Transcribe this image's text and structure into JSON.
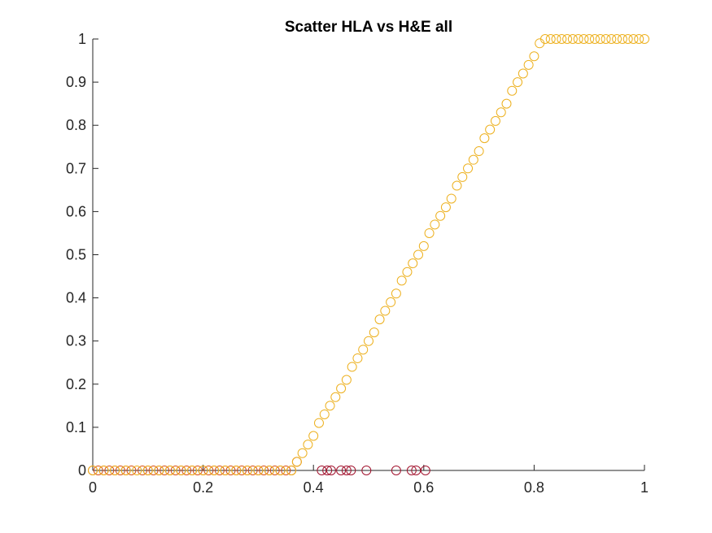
{
  "chart_data": {
    "type": "scatter",
    "title": "Scatter HLA vs H&E all",
    "xlabel": "",
    "ylabel": "",
    "xlim": [
      0,
      1
    ],
    "ylim": [
      0,
      1
    ],
    "x_ticks": [
      "0",
      "0.2",
      "0.4",
      "0.6",
      "0.8",
      "1"
    ],
    "y_ticks": [
      "0",
      "0.1",
      "0.2",
      "0.3",
      "0.4",
      "0.5",
      "0.6",
      "0.7",
      "0.8",
      "0.9",
      "1"
    ],
    "grid": false,
    "legend": "none",
    "colors": {
      "ramp": "#EDB120",
      "left_flat": "#D95319",
      "right_cluster": "#A2142F",
      "axis": "#262626"
    },
    "series": [
      {
        "color": "#D95319",
        "points": [
          [
            0.0,
            0
          ],
          [
            0.01,
            0
          ],
          [
            0.02,
            0
          ],
          [
            0.03,
            0
          ],
          [
            0.04,
            0
          ],
          [
            0.05,
            0
          ],
          [
            0.06,
            0
          ],
          [
            0.07,
            0
          ],
          [
            0.09,
            0
          ],
          [
            0.1,
            0
          ],
          [
            0.11,
            0
          ],
          [
            0.12,
            0
          ],
          [
            0.13,
            0
          ],
          [
            0.14,
            0
          ],
          [
            0.15,
            0
          ],
          [
            0.16,
            0
          ],
          [
            0.17,
            0
          ],
          [
            0.18,
            0
          ],
          [
            0.19,
            0
          ],
          [
            0.2,
            0
          ],
          [
            0.21,
            0
          ],
          [
            0.22,
            0
          ],
          [
            0.23,
            0
          ],
          [
            0.24,
            0
          ],
          [
            0.25,
            0
          ],
          [
            0.26,
            0
          ],
          [
            0.27,
            0
          ],
          [
            0.28,
            0
          ],
          [
            0.29,
            0
          ],
          [
            0.3,
            0
          ],
          [
            0.31,
            0
          ],
          [
            0.32,
            0
          ],
          [
            0.33,
            0
          ],
          [
            0.34,
            0
          ],
          [
            0.35,
            0
          ],
          [
            0.36,
            0
          ],
          [
            0.37,
            0.02
          ]
        ]
      },
      {
        "color": "#A2142F",
        "points": [
          [
            0.415,
            0
          ],
          [
            0.425,
            0
          ],
          [
            0.432,
            0
          ],
          [
            0.45,
            0
          ],
          [
            0.46,
            0
          ],
          [
            0.468,
            0
          ],
          [
            0.496,
            0
          ],
          [
            0.55,
            0
          ],
          [
            0.578,
            0
          ],
          [
            0.586,
            0
          ],
          [
            0.603,
            0
          ]
        ]
      },
      {
        "color": "#EDB120",
        "points": [
          [
            0.0,
            0
          ],
          [
            0.02,
            0
          ],
          [
            0.04,
            0
          ],
          [
            0.06,
            0
          ],
          [
            0.08,
            0
          ],
          [
            0.1,
            0
          ],
          [
            0.12,
            0
          ],
          [
            0.14,
            0
          ],
          [
            0.16,
            0
          ],
          [
            0.18,
            0
          ],
          [
            0.2,
            0
          ],
          [
            0.22,
            0
          ],
          [
            0.24,
            0
          ],
          [
            0.26,
            0
          ],
          [
            0.28,
            0
          ],
          [
            0.3,
            0
          ],
          [
            0.32,
            0
          ],
          [
            0.34,
            0
          ],
          [
            0.36,
            0
          ],
          [
            0.37,
            0.02
          ],
          [
            0.38,
            0.04
          ],
          [
            0.39,
            0.06
          ],
          [
            0.4,
            0.08
          ],
          [
            0.41,
            0.11
          ],
          [
            0.42,
            0.13
          ],
          [
            0.43,
            0.15
          ],
          [
            0.44,
            0.17
          ],
          [
            0.45,
            0.19
          ],
          [
            0.46,
            0.21
          ],
          [
            0.47,
            0.24
          ],
          [
            0.48,
            0.26
          ],
          [
            0.49,
            0.28
          ],
          [
            0.5,
            0.3
          ],
          [
            0.51,
            0.32
          ],
          [
            0.52,
            0.35
          ],
          [
            0.53,
            0.37
          ],
          [
            0.54,
            0.39
          ],
          [
            0.55,
            0.41
          ],
          [
            0.56,
            0.44
          ],
          [
            0.57,
            0.46
          ],
          [
            0.58,
            0.48
          ],
          [
            0.59,
            0.5
          ],
          [
            0.6,
            0.52
          ],
          [
            0.61,
            0.55
          ],
          [
            0.62,
            0.57
          ],
          [
            0.63,
            0.59
          ],
          [
            0.64,
            0.61
          ],
          [
            0.65,
            0.63
          ],
          [
            0.66,
            0.66
          ],
          [
            0.67,
            0.68
          ],
          [
            0.68,
            0.7
          ],
          [
            0.69,
            0.72
          ],
          [
            0.7,
            0.74
          ],
          [
            0.71,
            0.77
          ],
          [
            0.72,
            0.79
          ],
          [
            0.73,
            0.81
          ],
          [
            0.74,
            0.83
          ],
          [
            0.75,
            0.85
          ],
          [
            0.76,
            0.88
          ],
          [
            0.77,
            0.9
          ],
          [
            0.78,
            0.92
          ],
          [
            0.79,
            0.94
          ],
          [
            0.8,
            0.96
          ],
          [
            0.81,
            0.99
          ],
          [
            0.82,
            1
          ],
          [
            0.83,
            1
          ],
          [
            0.84,
            1
          ],
          [
            0.85,
            1
          ],
          [
            0.86,
            1
          ],
          [
            0.87,
            1
          ],
          [
            0.88,
            1
          ],
          [
            0.89,
            1
          ],
          [
            0.9,
            1
          ],
          [
            0.91,
            1
          ],
          [
            0.92,
            1
          ],
          [
            0.93,
            1
          ],
          [
            0.94,
            1
          ],
          [
            0.95,
            1
          ],
          [
            0.96,
            1
          ],
          [
            0.97,
            1
          ],
          [
            0.98,
            1
          ],
          [
            0.99,
            1
          ],
          [
            1.0,
            1
          ]
        ]
      }
    ]
  }
}
